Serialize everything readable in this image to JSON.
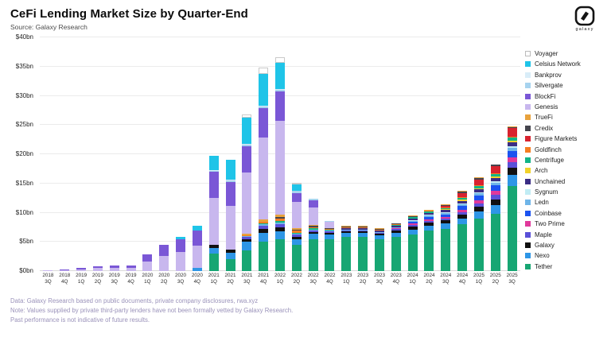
{
  "header": {
    "title": "CeFi Lending Market Size by Quarter-End",
    "source": "Source: Galaxy Research",
    "logo_text": "galaxy"
  },
  "footnotes": [
    "Data: Galaxy Research based on public documents, private company disclosures, rwa.xyz",
    "Note: Values supplied by private third-party lenders have not been formally vetted by Galaxy Research.",
    "Past performance is not indicative of future results."
  ],
  "chart_data": {
    "type": "bar",
    "stacked": true,
    "title": "CeFi Lending Market Size by Quarter-End",
    "xlabel": "",
    "ylabel": "",
    "ylim": [
      0,
      40
    ],
    "ytick_step": 5,
    "yticks": [
      "$0bn",
      "$5bn",
      "$10bn",
      "$15bn",
      "$20bn",
      "$25bn",
      "$30bn",
      "$35bn",
      "$40bn"
    ],
    "grid": true,
    "legend_position": "right",
    "units": "USD billions",
    "categories": [
      "2018 3Q",
      "2018 4Q",
      "2019 1Q",
      "2019 2Q",
      "2019 3Q",
      "2019 4Q",
      "2020 1Q",
      "2020 2Q",
      "2020 3Q",
      "2020 4Q",
      "2021 1Q",
      "2021 2Q",
      "2021 3Q",
      "2021 4Q",
      "2022 1Q",
      "2022 2Q",
      "2022 3Q",
      "2022 4Q",
      "2023 1Q",
      "2023 2Q",
      "2023 3Q",
      "2023 4Q",
      "2024 1Q",
      "2024 2Q",
      "2024 3Q",
      "2024 4Q",
      "2025 1Q",
      "2025 2Q",
      "2025 3Q"
    ],
    "series": [
      {
        "name": "Voyager",
        "color": "#ffffff",
        "values": [
          0,
          0,
          0,
          0,
          0,
          0,
          0,
          0,
          0,
          0,
          0,
          0,
          0.5,
          1.0,
          1.0,
          0.3,
          0,
          0,
          0,
          0,
          0,
          0,
          0,
          0,
          0,
          0,
          0,
          0,
          0
        ]
      },
      {
        "name": "Celsius Network",
        "color": "#1fc4e8",
        "values": [
          0,
          0,
          0,
          0,
          0,
          0,
          0,
          0,
          0.3,
          0.8,
          2.5,
          3.5,
          4.5,
          5.5,
          4.5,
          1.0,
          0,
          0,
          0,
          0,
          0,
          0,
          0,
          0,
          0,
          0,
          0,
          0,
          0
        ]
      },
      {
        "name": "Bankprov",
        "color": "#d9edf8",
        "values": [
          0,
          0,
          0,
          0,
          0,
          0,
          0,
          0,
          0,
          0,
          0.1,
          0.1,
          0.1,
          0.1,
          0.1,
          0.1,
          0,
          0,
          0,
          0,
          0,
          0,
          0,
          0,
          0,
          0,
          0,
          0,
          0
        ]
      },
      {
        "name": "Silvergate",
        "color": "#a7d3ef",
        "values": [
          0,
          0,
          0,
          0,
          0,
          0,
          0,
          0,
          0,
          0.1,
          0.2,
          0.3,
          0.3,
          0.3,
          0.3,
          0.3,
          0.3,
          0.2,
          0.1,
          0,
          0,
          0,
          0,
          0,
          0,
          0,
          0,
          0,
          0
        ]
      },
      {
        "name": "BlockFi",
        "color": "#7a57d6",
        "values": [
          0.05,
          0.1,
          0.2,
          0.3,
          0.35,
          0.4,
          1.1,
          1.9,
          2.3,
          2.6,
          4.5,
          4.0,
          4.5,
          5.0,
          5.0,
          1.5,
          1.2,
          0,
          0,
          0,
          0,
          0,
          0,
          0,
          0,
          0,
          0,
          0,
          0
        ]
      },
      {
        "name": "Genesis",
        "color": "#c8b7ee",
        "values": [
          0.15,
          0.2,
          0.3,
          0.5,
          0.55,
          0.6,
          1.7,
          2.6,
          3.2,
          3.8,
          8.0,
          7.5,
          10.5,
          14.0,
          16.0,
          4.5,
          3.0,
          1.0,
          0,
          0,
          0,
          0,
          0,
          0,
          0,
          0,
          0,
          0,
          0
        ]
      },
      {
        "name": "TrueFi",
        "color": "#e8a23c",
        "values": [
          0,
          0,
          0,
          0,
          0,
          0,
          0,
          0,
          0,
          0,
          0,
          0,
          0.3,
          0.4,
          0.5,
          0.3,
          0.2,
          0.1,
          0.1,
          0.1,
          0.1,
          0.1,
          0.1,
          0.1,
          0.1,
          0.1,
          0.1,
          0.1,
          0.1
        ]
      },
      {
        "name": "Credix",
        "color": "#45454e",
        "values": [
          0,
          0,
          0,
          0,
          0,
          0,
          0,
          0,
          0,
          0,
          0,
          0,
          0,
          0,
          0.2,
          0.2,
          0.2,
          0.1,
          0.1,
          0.1,
          0.1,
          0.1,
          0.1,
          0.1,
          0.1,
          0.2,
          0.2,
          0.2,
          0.2
        ]
      },
      {
        "name": "Figure Markets",
        "color": "#d8232f",
        "values": [
          0,
          0,
          0,
          0,
          0,
          0,
          0,
          0,
          0,
          0,
          0,
          0,
          0,
          0,
          0,
          0,
          0,
          0,
          0,
          0,
          0,
          0,
          0,
          0,
          0.3,
          0.8,
          1.0,
          1.2,
          1.5
        ]
      },
      {
        "name": "Goldfinch",
        "color": "#f57d21",
        "values": [
          0,
          0,
          0,
          0,
          0,
          0,
          0,
          0,
          0,
          0,
          0,
          0,
          0.1,
          0.3,
          0.4,
          0.3,
          0.2,
          0.1,
          0.1,
          0.1,
          0.1,
          0.1,
          0.1,
          0.1,
          0.1,
          0.1,
          0.2,
          0.2,
          0.2
        ]
      },
      {
        "name": "Centrifuge",
        "color": "#12b487",
        "values": [
          0,
          0,
          0,
          0,
          0,
          0,
          0,
          0,
          0,
          0,
          0,
          0,
          0,
          0.2,
          0.3,
          0.2,
          0.2,
          0.1,
          0.1,
          0.1,
          0.1,
          0.1,
          0.2,
          0.2,
          0.2,
          0.3,
          0.3,
          0.4,
          0.5
        ]
      },
      {
        "name": "Arch",
        "color": "#f2d22a",
        "values": [
          0,
          0,
          0,
          0,
          0,
          0,
          0,
          0,
          0,
          0,
          0,
          0,
          0,
          0,
          0,
          0,
          0,
          0,
          0,
          0,
          0,
          0,
          0,
          0.1,
          0.1,
          0.2,
          0.2,
          0.3,
          0.3
        ]
      },
      {
        "name": "Unchained",
        "color": "#3b2d85",
        "values": [
          0,
          0,
          0,
          0,
          0,
          0,
          0,
          0,
          0,
          0,
          0,
          0,
          0,
          0,
          0,
          0,
          0,
          0,
          0.2,
          0.2,
          0.2,
          0.3,
          0.3,
          0.3,
          0.4,
          0.4,
          0.5,
          0.5,
          0.6
        ]
      },
      {
        "name": "Sygnum",
        "color": "#c1ecf4",
        "values": [
          0,
          0,
          0,
          0,
          0,
          0,
          0,
          0,
          0,
          0,
          0,
          0,
          0,
          0,
          0,
          0,
          0,
          0,
          0,
          0,
          0,
          0,
          0.1,
          0.1,
          0.1,
          0.2,
          0.2,
          0.3,
          0.3
        ]
      },
      {
        "name": "Ledn",
        "color": "#6fb5e8",
        "values": [
          0,
          0,
          0,
          0,
          0,
          0,
          0,
          0,
          0,
          0,
          0,
          0,
          0.2,
          0.3,
          0.3,
          0.2,
          0.2,
          0.2,
          0.2,
          0.2,
          0.2,
          0.2,
          0.2,
          0.3,
          0.3,
          0.3,
          0.4,
          0.4,
          0.5
        ]
      },
      {
        "name": "Coinbase",
        "color": "#1b53f0",
        "values": [
          0,
          0,
          0,
          0,
          0,
          0,
          0,
          0,
          0,
          0,
          0,
          0,
          0,
          0,
          0,
          0,
          0,
          0,
          0,
          0,
          0,
          0,
          0.3,
          0.4,
          0.4,
          0.6,
          0.8,
          1.0,
          1.2
        ]
      },
      {
        "name": "Two Prime",
        "color": "#e0399b",
        "values": [
          0,
          0,
          0,
          0,
          0,
          0,
          0,
          0,
          0,
          0,
          0,
          0,
          0,
          0,
          0,
          0,
          0,
          0,
          0,
          0,
          0,
          0.1,
          0.2,
          0.2,
          0.3,
          0.4,
          0.5,
          0.6,
          0.7
        ]
      },
      {
        "name": "Maple",
        "color": "#5a50d8",
        "values": [
          0,
          0,
          0,
          0,
          0,
          0,
          0,
          0,
          0,
          0,
          0,
          0,
          0.3,
          0.5,
          0.5,
          0.3,
          0.2,
          0.2,
          0.1,
          0.1,
          0.1,
          0.2,
          0.3,
          0.3,
          0.3,
          0.4,
          0.6,
          0.8,
          1.0
        ]
      },
      {
        "name": "Galaxy",
        "color": "#111111",
        "values": [
          0,
          0,
          0,
          0,
          0,
          0,
          0,
          0,
          0,
          0,
          0.5,
          0.5,
          0.5,
          0.7,
          0.7,
          0.4,
          0.3,
          0.3,
          0.3,
          0.3,
          0.3,
          0.4,
          0.5,
          0.5,
          0.6,
          0.7,
          0.8,
          1.0,
          1.2
        ]
      },
      {
        "name": "Nexo",
        "color": "#2e96e6",
        "values": [
          0,
          0,
          0,
          0,
          0,
          0,
          0,
          0,
          0,
          0.5,
          1.0,
          1.2,
          1.5,
          1.5,
          1.3,
          1.0,
          0.9,
          0.8,
          0.7,
          0.7,
          0.6,
          0.7,
          0.8,
          0.8,
          0.9,
          1.0,
          1.2,
          1.5,
          2.0
        ]
      },
      {
        "name": "Tether",
        "color": "#17a673",
        "values": [
          0,
          0,
          0,
          0,
          0,
          0,
          0,
          0,
          0,
          0,
          3.0,
          2.0,
          3.5,
          5.0,
          5.5,
          4.5,
          5.5,
          5.5,
          5.8,
          5.8,
          5.5,
          5.9,
          6.3,
          7.0,
          7.2,
          8.0,
          9.0,
          9.8,
          14.5
        ]
      }
    ]
  }
}
